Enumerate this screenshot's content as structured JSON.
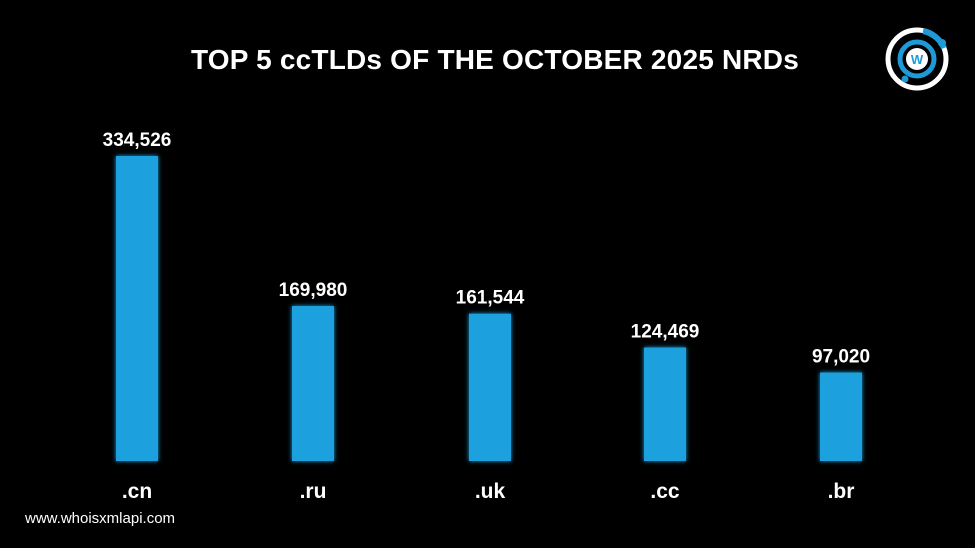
{
  "website": "www.whoisxmlapi.com",
  "logo": {
    "icon": "whoisxmlapi-logo-icon",
    "letter": "W",
    "accent": "#1e9bd7"
  },
  "colors": {
    "background": "#000000",
    "bar": "#1ba1de",
    "text": "#ffffff"
  },
  "chart_data": {
    "type": "bar",
    "title": "TOP 5 ccTLDs OF THE OCTOBER 2025 NRDs",
    "xlabel": "",
    "ylabel": "",
    "categories": [
      ".cn",
      ".ru",
      ".uk",
      ".cc",
      ".br"
    ],
    "values": [
      334526,
      169980,
      161544,
      124469,
      97020
    ],
    "value_labels": [
      "334,526",
      "169,980",
      "161,544",
      "124,469",
      "97,020"
    ],
    "ylim": [
      0,
      334526
    ],
    "grid": false,
    "legend": "none"
  }
}
